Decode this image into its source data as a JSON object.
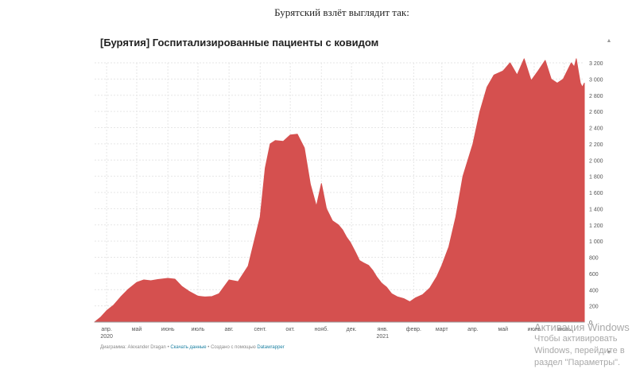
{
  "intro_text": "Бурятский взлёт выглядит так:",
  "footer": {
    "prefix": "Диаграмма: Alexander Dragan •",
    "download": "Скачать данные",
    "middle": "• Создано с помощью",
    "tool": "Datawrapper"
  },
  "watermark": {
    "line1": "Активация Windows",
    "line2": "Чтобы активировать Windows, перейдите в",
    "line3": "раздел \"Параметры\"."
  },
  "colors": {
    "area": "#d5504f",
    "grid": "#e6e6e6",
    "text": "#333333"
  },
  "chart_data": {
    "type": "area",
    "title": "[Бурятия] Госпитализированные пациенты с ковидом",
    "xlabel": "",
    "ylabel": "",
    "ylim": [
      0,
      3200
    ],
    "y_ticks": [
      0,
      200,
      400,
      600,
      800,
      1000,
      1200,
      1400,
      1600,
      1800,
      2000,
      2200,
      2400,
      2600,
      2800,
      3000,
      3200
    ],
    "y_tick_labels": [
      "0",
      "200",
      "400",
      "600",
      "800",
      "1 000",
      "1 200",
      "1 400",
      "1 600",
      "1 800",
      "2 000",
      "2 200",
      "2 400",
      "2 600",
      "2 800",
      "3 000",
      "3 200"
    ],
    "x_ticks": [
      {
        "date": "2020-04-01",
        "label": "апр.",
        "sub": "2020"
      },
      {
        "date": "2020-05-01",
        "label": "май",
        "sub": ""
      },
      {
        "date": "2020-06-01",
        "label": "июнь",
        "sub": ""
      },
      {
        "date": "2020-07-01",
        "label": "июль",
        "sub": ""
      },
      {
        "date": "2020-08-01",
        "label": "авг.",
        "sub": ""
      },
      {
        "date": "2020-09-01",
        "label": "сент.",
        "sub": ""
      },
      {
        "date": "2020-10-01",
        "label": "окт.",
        "sub": ""
      },
      {
        "date": "2020-11-01",
        "label": "нояб.",
        "sub": ""
      },
      {
        "date": "2020-12-01",
        "label": "дек.",
        "sub": ""
      },
      {
        "date": "2021-01-01",
        "label": "янв.",
        "sub": "2021"
      },
      {
        "date": "2021-02-01",
        "label": "февр.",
        "sub": ""
      },
      {
        "date": "2021-03-01",
        "label": "март",
        "sub": ""
      },
      {
        "date": "2021-04-01",
        "label": "апр.",
        "sub": ""
      },
      {
        "date": "2021-05-01",
        "label": "май",
        "sub": ""
      },
      {
        "date": "2021-06-01",
        "label": "июнь",
        "sub": ""
      },
      {
        "date": "2021-07-01",
        "label": "июль",
        "sub": ""
      }
    ],
    "x_range": [
      "2020-03-20",
      "2021-07-21"
    ],
    "series": [
      {
        "x": [
          "2020-03-20",
          "2020-03-26",
          "2020-04-01",
          "2020-04-08",
          "2020-04-15",
          "2020-04-22",
          "2020-05-01",
          "2020-05-08",
          "2020-05-15",
          "2020-05-22",
          "2020-06-01",
          "2020-06-08",
          "2020-06-15",
          "2020-06-22",
          "2020-07-01",
          "2020-07-08",
          "2020-07-15",
          "2020-07-22",
          "2020-08-01",
          "2020-08-10",
          "2020-08-20",
          "2020-09-01",
          "2020-09-06",
          "2020-09-11",
          "2020-09-16",
          "2020-09-24",
          "2020-10-01",
          "2020-10-08",
          "2020-10-15",
          "2020-10-21",
          "2020-10-27",
          "2020-11-01",
          "2020-11-06",
          "2020-11-12",
          "2020-11-18",
          "2020-11-22",
          "2020-11-26",
          "2020-11-30",
          "2020-12-05",
          "2020-12-09",
          "2020-12-13",
          "2020-12-18",
          "2020-12-22",
          "2020-12-26",
          "2020-12-31",
          "2021-01-05",
          "2021-01-10",
          "2021-01-16",
          "2021-01-22",
          "2021-01-28",
          "2021-02-03",
          "2021-02-10",
          "2021-02-17",
          "2021-02-24",
          "2021-03-01",
          "2021-03-08",
          "2021-03-15",
          "2021-03-22",
          "2021-04-01",
          "2021-04-08",
          "2021-04-15",
          "2021-04-22",
          "2021-05-01",
          "2021-05-08",
          "2021-05-15",
          "2021-05-22",
          "2021-05-29",
          "2021-06-05",
          "2021-06-12",
          "2021-06-18",
          "2021-06-24",
          "2021-06-30",
          "2021-07-04",
          "2021-07-08",
          "2021-07-11",
          "2021-07-13",
          "2021-07-15",
          "2021-07-17",
          "2021-07-19",
          "2021-07-21"
        ],
        "values": [
          0,
          60,
          140,
          210,
          310,
          400,
          490,
          520,
          510,
          525,
          540,
          530,
          440,
          380,
          320,
          310,
          315,
          350,
          520,
          500,
          690,
          1300,
          1900,
          2200,
          2240,
          2230,
          2310,
          2320,
          2150,
          1700,
          1430,
          1710,
          1400,
          1250,
          1200,
          1140,
          1050,
          980,
          860,
          760,
          730,
          700,
          640,
          560,
          480,
          430,
          350,
          310,
          290,
          250,
          300,
          340,
          420,
          560,
          700,
          930,
          1300,
          1800,
          2200,
          2600,
          2900,
          3050,
          3100,
          3200,
          3050,
          3250,
          2980,
          3100,
          3230,
          3000,
          2950,
          3000,
          3100,
          3200,
          3150,
          3250,
          3100,
          2950,
          2900,
          2950
        ]
      }
    ]
  }
}
